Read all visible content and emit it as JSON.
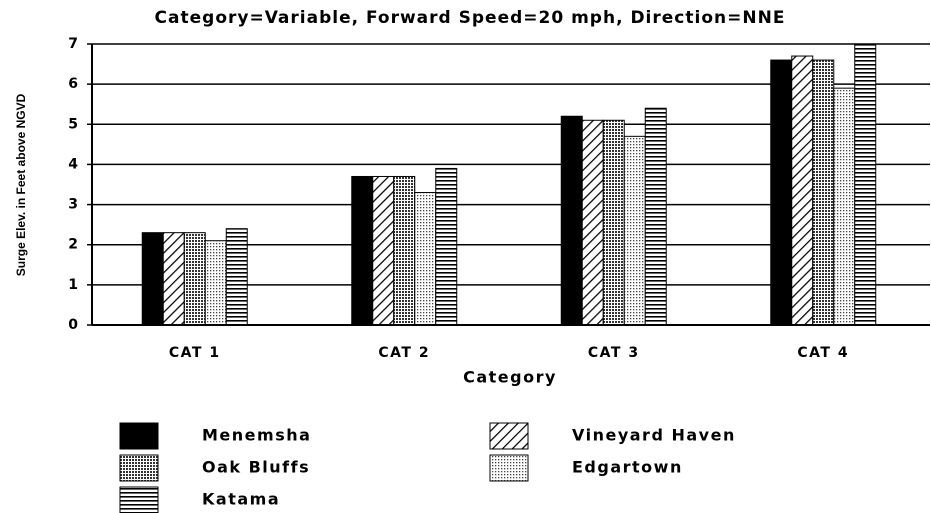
{
  "chart_data": {
    "type": "bar",
    "title": "Category=Variable, Forward Speed=20 mph, Direction=NNE",
    "y_label": "Surge Elev. in Feet above NGVD",
    "x_label": "Category",
    "categories": [
      "CAT 1",
      "CAT 2",
      "CAT 3",
      "CAT 4"
    ],
    "series": [
      {
        "name": "Menemsha",
        "color": "#000000",
        "pattern": "solid",
        "values": [
          2.3,
          3.7,
          5.2,
          6.6
        ]
      },
      {
        "name": "Vineyard Haven",
        "color": "#000000",
        "pattern": "diagonal",
        "values": [
          2.3,
          3.7,
          5.1,
          6.7
        ]
      },
      {
        "name": "Oak Bluffs",
        "color": "#000000",
        "pattern": "crosshatch",
        "values": [
          2.3,
          3.7,
          5.1,
          6.6
        ]
      },
      {
        "name": "Edgartown",
        "color": "#000000",
        "pattern": "dots",
        "values": [
          2.1,
          3.3,
          4.7,
          5.9
        ]
      },
      {
        "name": "Katama",
        "color": "#000000",
        "pattern": "horizontal",
        "values": [
          2.4,
          3.9,
          5.4,
          7.0
        ]
      }
    ],
    "ylim": [
      0,
      7
    ],
    "yticks": [
      0,
      1,
      2,
      3,
      4,
      5,
      6,
      7
    ],
    "grid": true
  }
}
